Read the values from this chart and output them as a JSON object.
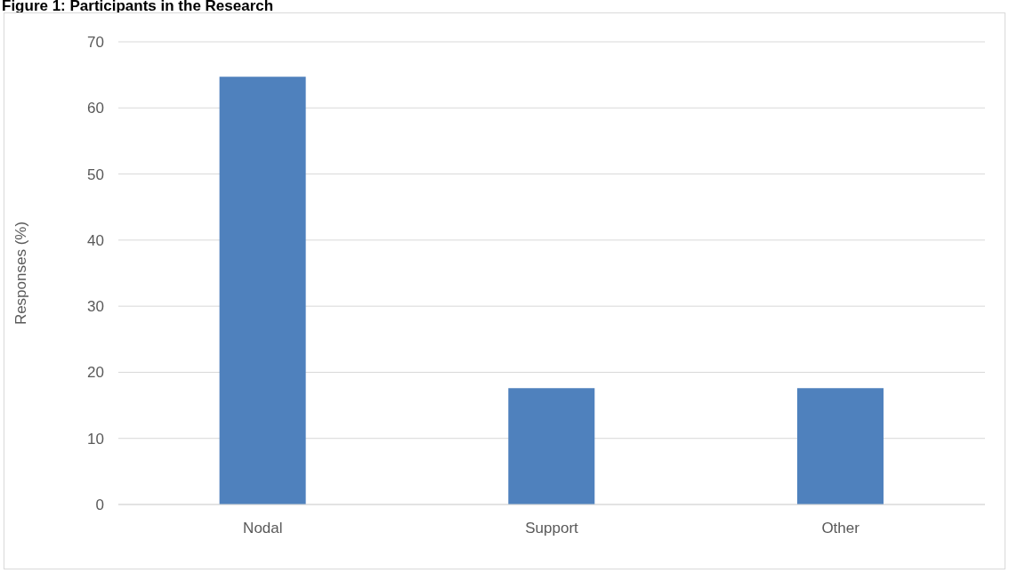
{
  "chart_data": {
    "type": "bar",
    "title": "Figure 1: Participants in the Research",
    "ylabel": "Responses (%)",
    "categories": [
      "Nodal",
      "Support",
      "Other"
    ],
    "values": [
      64.7,
      17.6,
      17.6
    ],
    "color": "#4f81bd",
    "ylim": [
      0,
      70
    ],
    "yticks": [
      0,
      10,
      20,
      30,
      40,
      50,
      60,
      70
    ],
    "grid": "y"
  }
}
